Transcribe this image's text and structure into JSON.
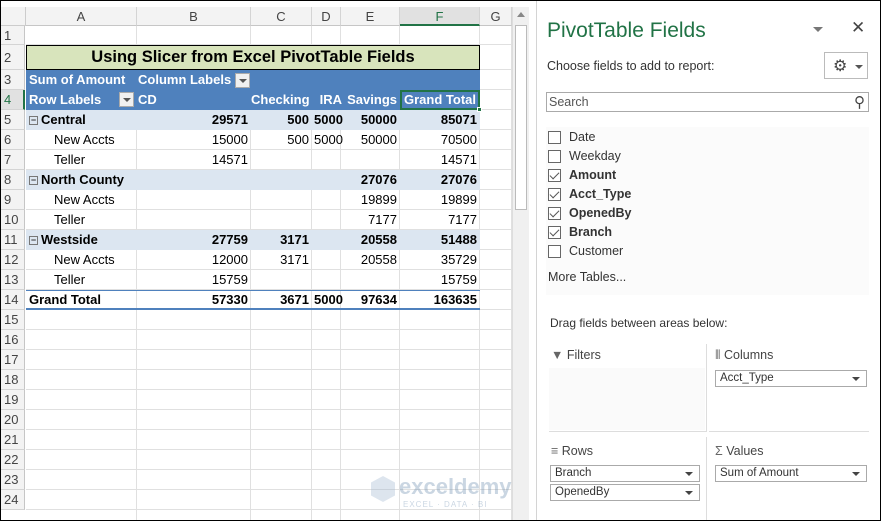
{
  "sheet": {
    "columns": [
      "A",
      "B",
      "C",
      "D",
      "E",
      "F",
      "G"
    ],
    "selected_column": "F",
    "rows": [
      "1",
      "2",
      "3",
      "4",
      "5",
      "6",
      "7",
      "8",
      "9",
      "10",
      "11",
      "12",
      "13",
      "14",
      "15",
      "16",
      "17",
      "18",
      "19",
      "20",
      "21",
      "22",
      "23",
      "24"
    ],
    "title": "Using Slicer from Excel PivotTable Fields",
    "pivot": {
      "value_label": "Sum of  Amount",
      "column_labels": "Column Labels",
      "row_labels": "Row Labels",
      "headers": [
        "CD",
        "Checking",
        "IRA",
        "Savings",
        "Grand Total"
      ],
      "body": [
        {
          "label": "Central",
          "level": 0,
          "values": [
            "29571",
            "500",
            "5000",
            "50000",
            "85071"
          ]
        },
        {
          "label": "New Accts",
          "level": 1,
          "values": [
            "15000",
            "500",
            "5000",
            "50000",
            "70500"
          ]
        },
        {
          "label": "Teller",
          "level": 1,
          "values": [
            "14571",
            "",
            "",
            "",
            "14571"
          ]
        },
        {
          "label": "North County",
          "level": 0,
          "values": [
            "",
            "",
            "",
            "27076",
            "27076"
          ]
        },
        {
          "label": "New Accts",
          "level": 1,
          "values": [
            "",
            "",
            "",
            "19899",
            "19899"
          ]
        },
        {
          "label": "Teller",
          "level": 1,
          "values": [
            "",
            "",
            "",
            "7177",
            "7177"
          ]
        },
        {
          "label": "Westside",
          "level": 0,
          "values": [
            "27759",
            "3171",
            "",
            "20558",
            "51488"
          ]
        },
        {
          "label": "New Accts",
          "level": 1,
          "values": [
            "12000",
            "3171",
            "",
            "20558",
            "35729"
          ]
        },
        {
          "label": "Teller",
          "level": 1,
          "values": [
            "15759",
            "",
            "",
            "",
            "15759"
          ]
        }
      ],
      "grand_total": {
        "label": "Grand Total",
        "values": [
          "57330",
          "3671",
          "5000",
          "97634",
          "163635"
        ]
      }
    },
    "watermark": "exceldemy",
    "watermark_sub": "EXCEL · DATA · BI"
  },
  "panel": {
    "title": "PivotTable Fields",
    "subtitle": "Choose fields to add to report:",
    "search_placeholder": "Search",
    "fields": [
      {
        "label": "Date",
        "checked": false
      },
      {
        "label": "Weekday",
        "checked": false
      },
      {
        "label": "Amount",
        "checked": true
      },
      {
        "label": "Acct_Type",
        "checked": true
      },
      {
        "label": "OpenedBy",
        "checked": true
      },
      {
        "label": "Branch",
        "checked": true
      },
      {
        "label": "Customer",
        "checked": false
      }
    ],
    "more_tables": "More Tables...",
    "drag_hint": "Drag fields between areas below:",
    "areas": {
      "filters": {
        "label": "Filters",
        "items": []
      },
      "columns": {
        "label": "Columns",
        "items": [
          "Acct_Type"
        ]
      },
      "rows": {
        "label": "Rows",
        "items": [
          "Branch",
          "OpenedBy"
        ]
      },
      "values": {
        "label": "Values",
        "items": [
          "Sum of  Amount"
        ]
      }
    }
  },
  "colors": {
    "pivot_header": "#4f81bd",
    "pivot_band": "#dce6f1",
    "title_fill": "#d8e4bc",
    "panel_title": "#217346"
  }
}
